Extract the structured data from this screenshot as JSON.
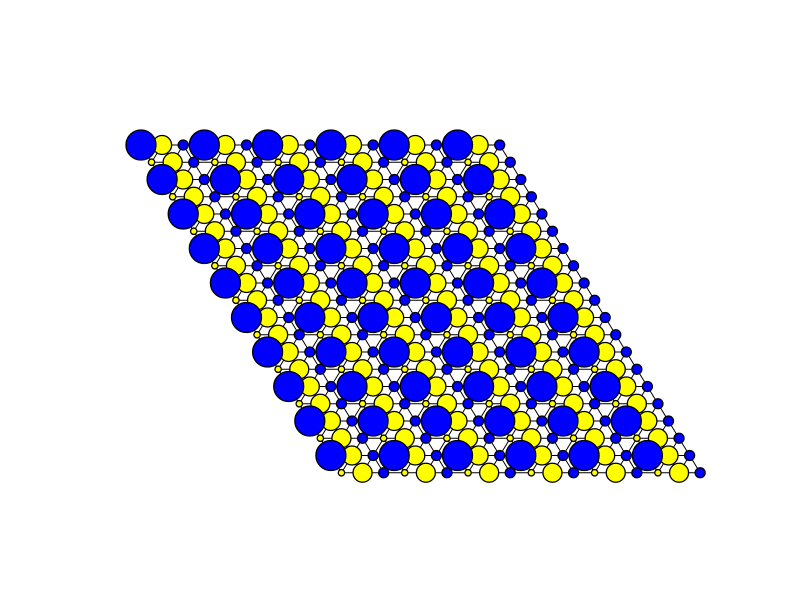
{
  "lattice": {
    "rows": 10,
    "cols": 18,
    "colors": {
      "blue": "#0000ff",
      "yellow": "#ffff00",
      "stroke": "#000000",
      "background": "#ffffff"
    },
    "row_patterns": {
      "even": [
        "blue-large",
        "yellow-medium",
        "blue-small"
      ],
      "odd": [
        "yellow-tiny",
        "yellow-medium",
        "blue-small",
        "yellow-tiny",
        "yellow-medium",
        "blue-small"
      ]
    }
  }
}
